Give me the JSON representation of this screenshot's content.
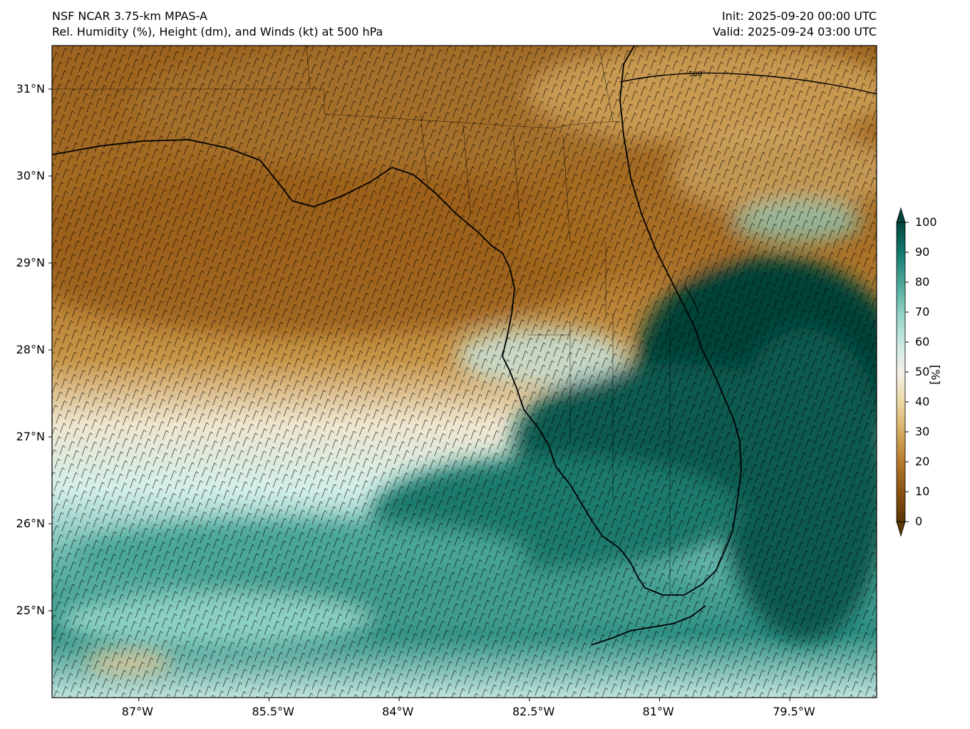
{
  "title": {
    "left_line1": "NSF NCAR 3.75-km MPAS-A",
    "left_line2": "Rel. Humidity (%), Height (dm), and Winds (kt) at 500 hPa",
    "right_line1": "Init: 2025-09-20 00:00 UTC",
    "right_line2": "Valid: 2025-09-24 03:00 UTC"
  },
  "map": {
    "lon_range": [
      -88.0,
      -78.5
    ],
    "lat_range": [
      24.0,
      31.5
    ],
    "lat_ticks": [
      "31°N",
      "30°N",
      "29°N",
      "28°N",
      "27°N",
      "26°N",
      "25°N"
    ],
    "lon_ticks": [
      "87°W",
      "85.5°W",
      "84°W",
      "82.5°W",
      "81°W",
      "79.5°W"
    ],
    "contour_label": "588"
  },
  "colorbar": {
    "ticks": [
      "0",
      "10",
      "20",
      "30",
      "40",
      "50",
      "60",
      "70",
      "80",
      "90",
      "100"
    ],
    "unit": "[%]",
    "colors": [
      "#5c3604",
      "#8a5213",
      "#b77a2c",
      "#d6ac61",
      "#ecd8a5",
      "#f4f1ea",
      "#c8e9e3",
      "#8cd0c3",
      "#4aa698",
      "#137a6e",
      "#00463c"
    ]
  }
}
